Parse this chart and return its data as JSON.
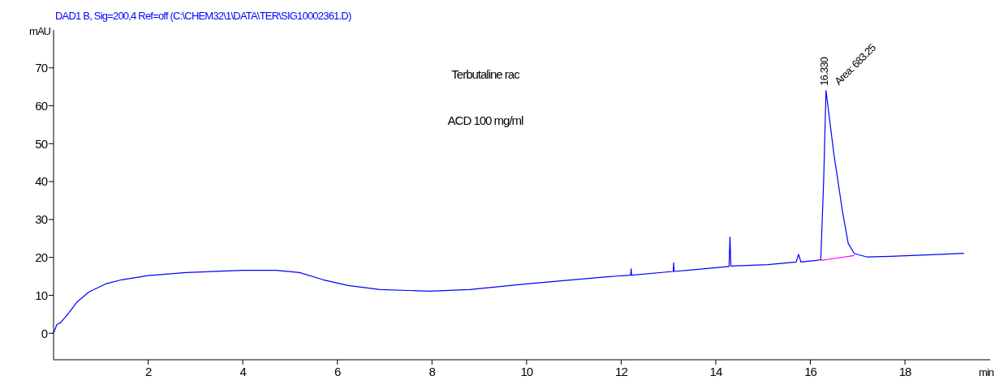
{
  "chart_data": {
    "type": "line",
    "title": "DAD1 B, Sig=200,4 Ref=off (C:\\CHEM32\\1\\DATA\\TER\\SIG10002361.D)",
    "xlabel": "min",
    "ylabel": "mAU",
    "annotations": [
      "Terbutaline rac",
      "ACD 100 mg/ml",
      {
        "text": "16.330",
        "x": 16.33,
        "y": 64
      },
      {
        "text": "Area: 683.25",
        "x": 16.33,
        "y": 64
      }
    ],
    "xlim": [
      0,
      19.8
    ],
    "ylim": [
      -7,
      80
    ],
    "xticks": [
      2,
      4,
      6,
      8,
      10,
      12,
      14,
      16,
      18
    ],
    "yticks": [
      0,
      10,
      20,
      30,
      40,
      50,
      60,
      70
    ],
    "grid": false,
    "marker": "none",
    "line_style": "solid",
    "series": [
      {
        "color": "#0000ff",
        "x": [
          0,
          0.07,
          0.15,
          0.33,
          0.5,
          0.75,
          1.1,
          1.44,
          2,
          2.8,
          4,
          4.7,
          5.2,
          5.7,
          6.23,
          6.9,
          7.95,
          8.8,
          10,
          11.7,
          12.2,
          12.21,
          12.22,
          13.1,
          13.11,
          13.12,
          13.4,
          14.28,
          14.3,
          14.32,
          15.1,
          15.7,
          15.75,
          15.8,
          16.13,
          16.22,
          16.28,
          16.33,
          16.5,
          16.68,
          16.8,
          16.93,
          17.2,
          17.7,
          18.56,
          19.25
        ],
        "values": [
          0,
          2.3,
          2.8,
          5.5,
          8.3,
          10.9,
          13,
          14.1,
          15.2,
          16,
          16.6,
          16.6,
          16,
          14.1,
          12.6,
          11.5,
          11.1,
          11.5,
          13,
          14.9,
          15.3,
          17,
          15.3,
          16.3,
          18.6,
          16.3,
          16.6,
          17.6,
          25.4,
          17.7,
          18.1,
          18.8,
          20.8,
          18.8,
          19.2,
          19.4,
          40,
          64,
          47,
          32,
          23.7,
          21,
          20.1,
          20.3,
          20.7,
          21.1
        ]
      },
      {
        "color": "#ff00ff",
        "x": [
          16.22,
          16.93
        ],
        "values": [
          19.2,
          20.5
        ]
      }
    ]
  }
}
